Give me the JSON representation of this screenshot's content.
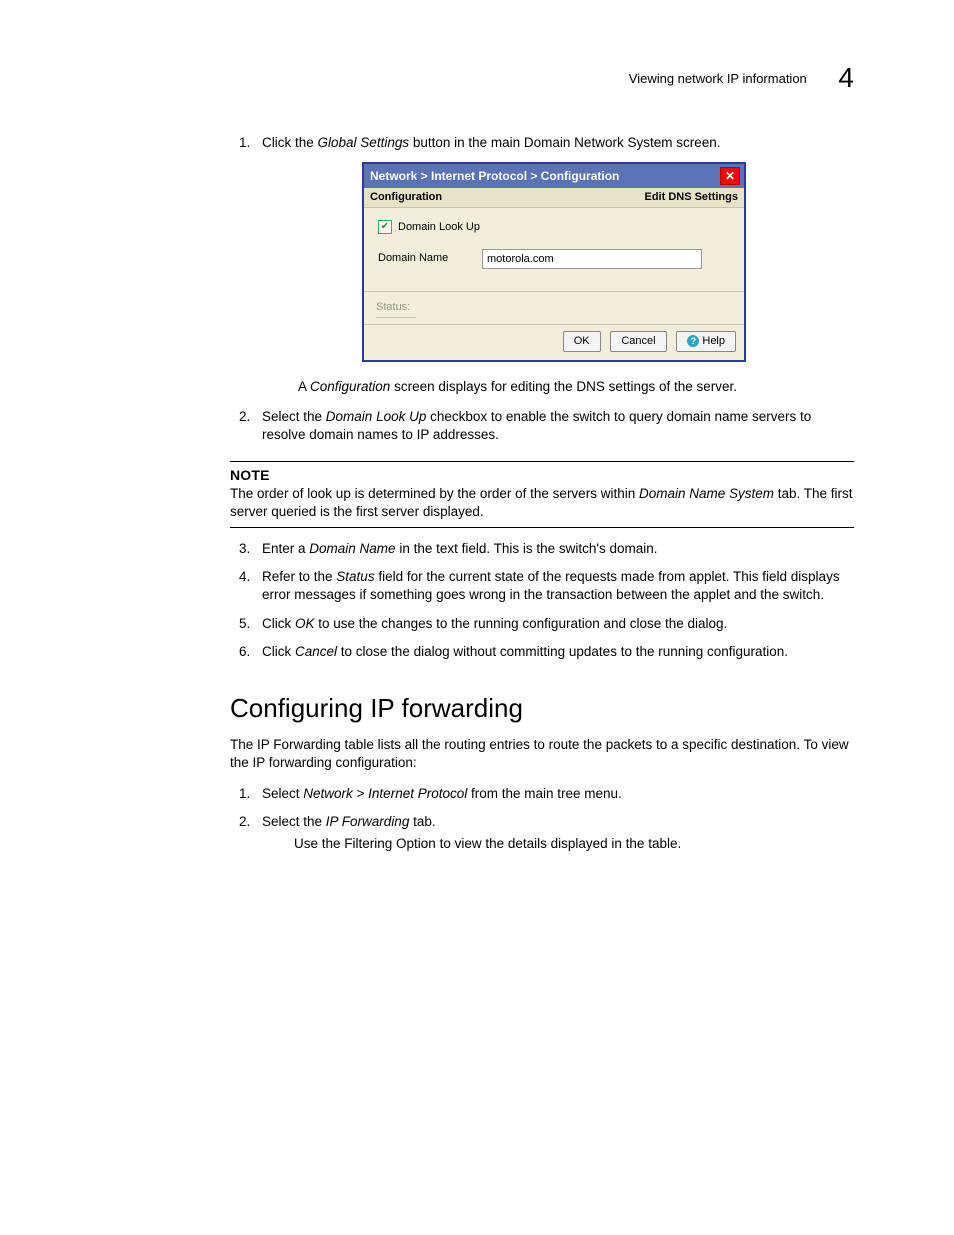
{
  "header": {
    "running_title": "Viewing network IP information",
    "chapter_number": "4"
  },
  "intro_step": {
    "before": "Click the ",
    "italic": "Global Settings",
    "after": " button in the main Domain Network System screen."
  },
  "dialog": {
    "breadcrumb": "Network > Internet Protocol > Configuration",
    "sub_left": "Configuration",
    "sub_right": "Edit DNS Settings",
    "checkbox_label": "Domain Look Up",
    "checkbox_checked": true,
    "field_label": "Domain Name",
    "field_value": "motorola.com",
    "status_label": "Status:",
    "buttons": {
      "ok": "OK",
      "cancel": "Cancel",
      "help": "Help"
    },
    "colors": {
      "frame_border": "#2a3d8f",
      "titlebar_bg": "#5a73b7",
      "body_bg": "#f1eedc",
      "close_bg": "#ff0000"
    }
  },
  "caption": {
    "before": "A ",
    "italic": "Configuration",
    "after": " screen displays for editing the DNS settings of the server."
  },
  "step2": {
    "before": "Select the ",
    "italic": "Domain Look Up",
    "after": " checkbox to enable the switch to query domain name servers to resolve domain names to IP addresses."
  },
  "note": {
    "label": "NOTE",
    "before": "The order of look up is determined by the order of the servers within ",
    "italic": "Domain Name System",
    "after": " tab. The first server queried is the first server displayed."
  },
  "step3": {
    "before": "Enter a ",
    "italic": "Domain Name",
    "after": " in the text field. This is the switch's domain."
  },
  "step4": {
    "before": "Refer to the ",
    "italic": "Status",
    "after": " field for the current state of the requests made from applet. This field displays error messages if something goes wrong in the transaction between the applet and the switch."
  },
  "step5": {
    "before": "Click ",
    "italic": "OK",
    "after": " to use the changes to the running configuration and close the dialog."
  },
  "step6": {
    "before": "Click ",
    "italic": "Cancel",
    "after": " to close the dialog without committing updates to the running configuration."
  },
  "section": {
    "title": "Configuring IP forwarding",
    "intro": "The IP Forwarding table lists all the routing entries to route the packets to a specific destination. To view the IP forwarding configuration:",
    "s1": {
      "before": "Select ",
      "italic": "Network > Internet Protocol",
      "after": " from the main tree menu."
    },
    "s2": {
      "before": "Select the ",
      "italic": "IP Forwarding",
      "after": " tab."
    },
    "s2_sub": "Use the Filtering Option to view the details displayed in the table."
  }
}
